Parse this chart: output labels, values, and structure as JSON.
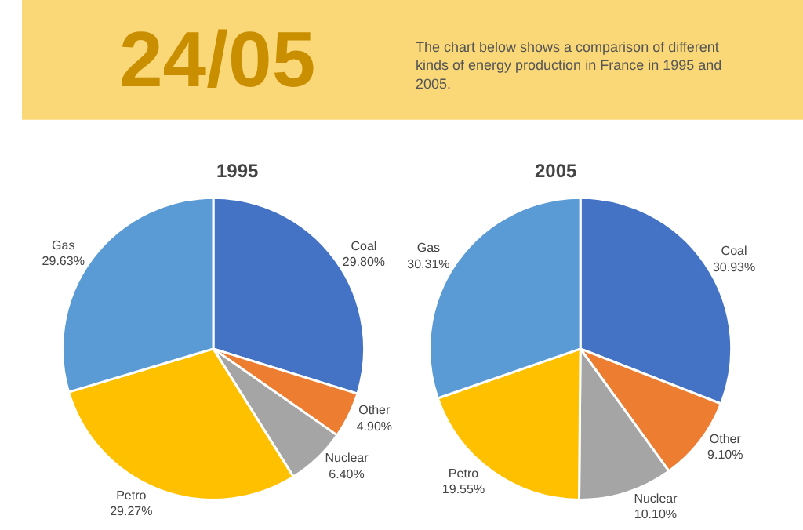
{
  "chart_data": [
    {
      "type": "other",
      "title": "24/05",
      "subtitle": "The chart below shows a comparison of different kinds of energy production in France in 1995 and 2005."
    },
    {
      "type": "pie",
      "title": "1995",
      "categories": [
        "Coal",
        "Other",
        "Nuclear",
        "Petro",
        "Gas"
      ],
      "values": [
        29.8,
        4.9,
        6.4,
        29.27,
        29.63
      ],
      "value_labels": [
        "29.80%",
        "4.90%",
        "6.40%",
        "29.27%",
        "29.63%"
      ],
      "colors": [
        "#4472c4",
        "#ed7d31",
        "#a5a5a5",
        "#ffc000",
        "#5b9bd5"
      ]
    },
    {
      "type": "pie",
      "title": "2005",
      "categories": [
        "Coal",
        "Other",
        "Nuclear",
        "Petro",
        "Gas"
      ],
      "values": [
        30.93,
        9.1,
        10.1,
        19.55,
        30.31
      ],
      "value_labels": [
        "30.93%",
        "9.10%",
        "10.10%",
        "19.55%",
        "30.31%"
      ],
      "colors": [
        "#4472c4",
        "#ed7d31",
        "#a5a5a5",
        "#ffc000",
        "#5b9bd5"
      ]
    }
  ]
}
